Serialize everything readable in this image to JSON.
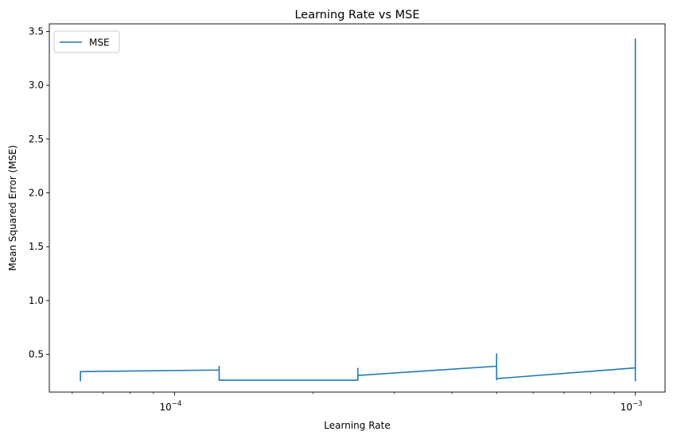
{
  "chart_data": {
    "type": "line",
    "title": "Learning Rate vs MSE",
    "xlabel": "Learning Rate",
    "ylabel": "Mean Squared Error (MSE)",
    "xscale": "log",
    "xlim": [
      5.35e-05,
      0.00116
    ],
    "ylim": [
      0.15,
      3.57
    ],
    "x_major_ticks": [
      {
        "value": 0.0001,
        "base": "10",
        "exp": "−4"
      },
      {
        "value": 0.001,
        "base": "10",
        "exp": "−3"
      }
    ],
    "x_minor_ticks": [
      6e-05,
      7e-05,
      8e-05,
      9e-05,
      0.0002,
      0.0003,
      0.0004,
      0.0005,
      0.0006,
      0.0007,
      0.0008,
      0.0009
    ],
    "y_ticks": [
      {
        "value": 0.5,
        "label": "0.5"
      },
      {
        "value": 1.0,
        "label": "1.0"
      },
      {
        "value": 1.5,
        "label": "1.5"
      },
      {
        "value": 2.0,
        "label": "2.0"
      },
      {
        "value": 2.5,
        "label": "2.5"
      },
      {
        "value": 3.0,
        "label": "3.0"
      },
      {
        "value": 3.5,
        "label": "3.5"
      }
    ],
    "grid": false,
    "legend": {
      "position": "upper-left"
    },
    "series": [
      {
        "name": "MSE",
        "color": "#1f77b4",
        "points": [
          [
            6.25e-05,
            0.25
          ],
          [
            6.25e-05,
            0.34
          ],
          [
            0.000125,
            0.355
          ],
          [
            0.000125,
            0.39
          ],
          [
            0.000125,
            0.26
          ],
          [
            0.00025,
            0.26
          ],
          [
            0.00025,
            0.37
          ],
          [
            0.00025,
            0.305
          ],
          [
            0.0005,
            0.39
          ],
          [
            0.0005,
            0.505
          ],
          [
            0.0005,
            0.265
          ],
          [
            0.0005,
            0.275
          ],
          [
            0.001,
            0.375
          ],
          [
            0.001,
            3.43
          ],
          [
            0.001,
            0.25
          ]
        ]
      }
    ]
  }
}
